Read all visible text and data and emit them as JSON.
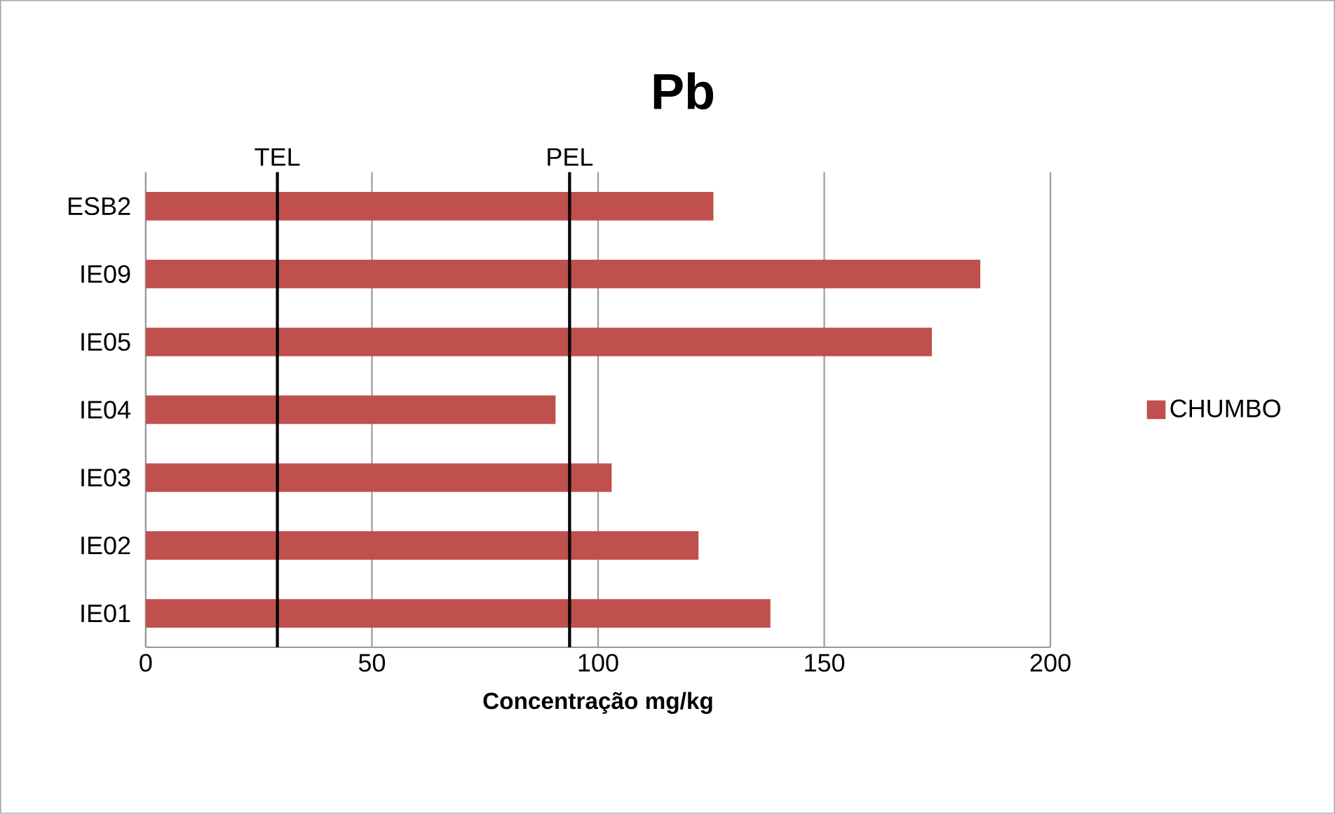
{
  "chart_data": {
    "type": "bar",
    "orientation": "horizontal",
    "title": "Pb",
    "xlabel": "Concentração mg/kg",
    "categories": [
      "ESB2",
      "IE09",
      "IE05",
      "IE04",
      "IE03",
      "IE02",
      "IE01"
    ],
    "series": [
      {
        "name": "CHUMBO",
        "color": "#c0504d",
        "values": [
          125.5,
          184.5,
          173.8,
          90.6,
          103.0,
          122.2,
          138.1
        ]
      }
    ],
    "xlim": [
      0,
      200
    ],
    "xticks": [
      0,
      50,
      100,
      150,
      200
    ],
    "grid": "x",
    "legend": "right",
    "ref_lines": [
      {
        "axis": "x",
        "value": 29.1,
        "label": "TEL",
        "color": "#000000"
      },
      {
        "axis": "x",
        "value": 93.7,
        "label": "PEL",
        "color": "#000000"
      }
    ]
  }
}
